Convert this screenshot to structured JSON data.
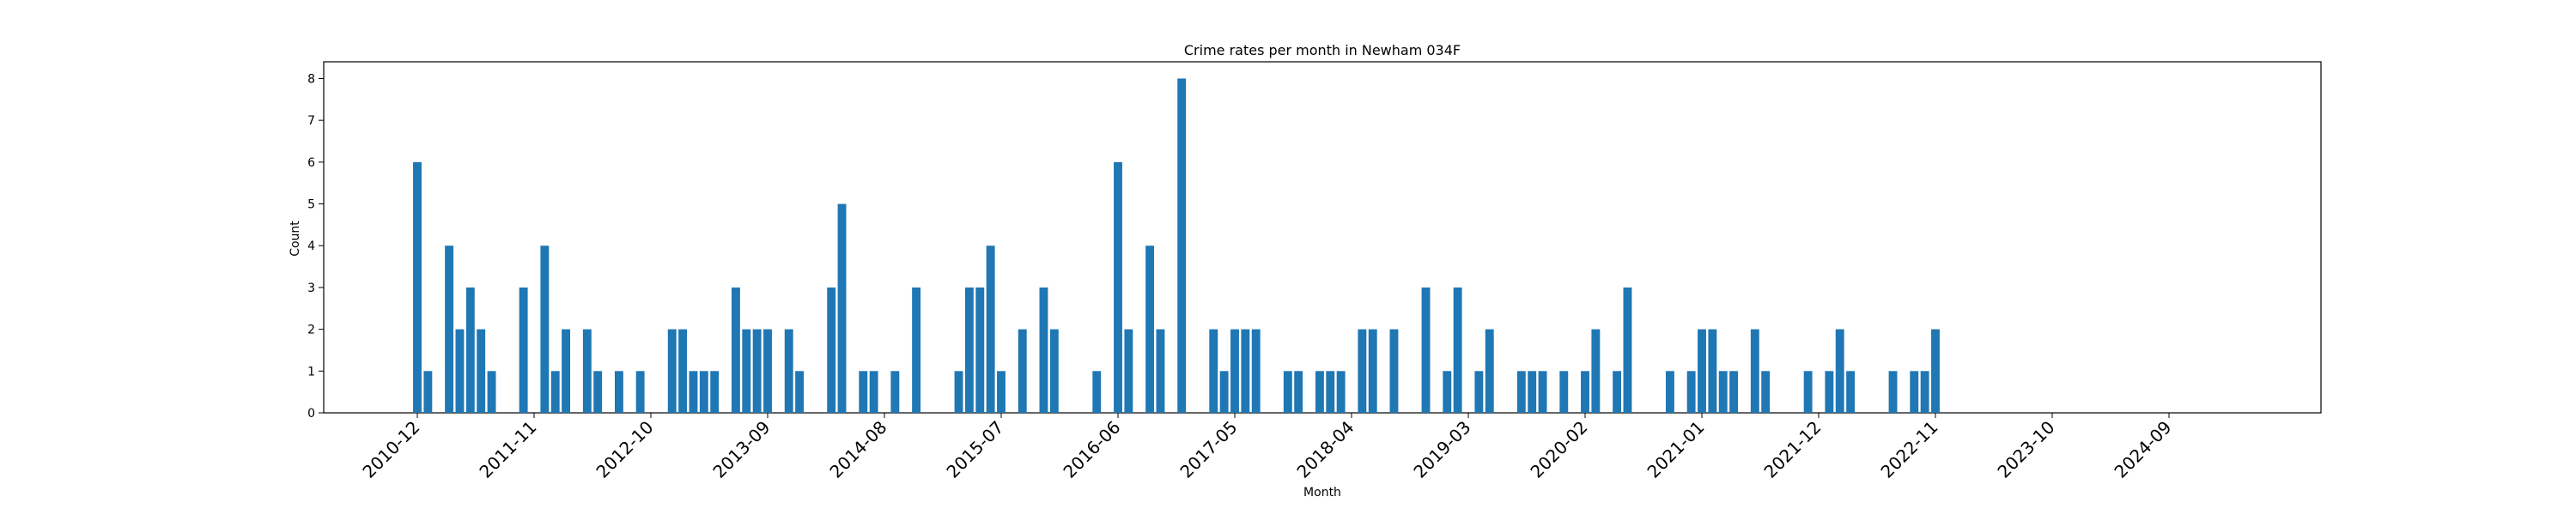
{
  "chart_data": {
    "type": "bar",
    "title": "Crime rates per month in Newham 034F",
    "xlabel": "Month",
    "ylabel": "Count",
    "ylim": [
      0,
      8.4
    ],
    "yticks": [
      0,
      1,
      2,
      3,
      4,
      5,
      6,
      7,
      8
    ],
    "xtick_labels": [
      "2010-12",
      "2011-11",
      "2012-10",
      "2013-09",
      "2014-08",
      "2015-07",
      "2016-06",
      "2017-05",
      "2018-04",
      "2019-03",
      "2020-02",
      "2021-01",
      "2021-12",
      "2022-11",
      "2023-10",
      "2024-09"
    ],
    "bar_color": "#1f77b4",
    "grid": false,
    "categories": [
      "2010-12",
      "2011-01",
      "2011-03",
      "2011-04",
      "2011-05",
      "2011-06",
      "2011-07",
      "2011-10",
      "2011-12",
      "2012-01",
      "2012-02",
      "2012-04",
      "2012-05",
      "2012-07",
      "2012-09",
      "2012-12",
      "2013-01",
      "2013-02",
      "2013-03",
      "2013-04",
      "2013-06",
      "2013-07",
      "2013-08",
      "2013-09",
      "2013-11",
      "2013-12",
      "2014-03",
      "2014-04",
      "2014-06",
      "2014-07",
      "2014-09",
      "2014-11",
      "2015-03",
      "2015-04",
      "2015-05",
      "2015-06",
      "2015-07",
      "2015-09",
      "2015-11",
      "2015-12",
      "2016-04",
      "2016-06",
      "2016-07",
      "2016-09",
      "2016-10",
      "2016-12",
      "2017-03",
      "2017-04",
      "2017-05",
      "2017-06",
      "2017-07",
      "2017-10",
      "2017-11",
      "2018-01",
      "2018-02",
      "2018-03",
      "2018-05",
      "2018-06",
      "2018-08",
      "2018-11",
      "2019-01",
      "2019-02",
      "2019-04",
      "2019-05",
      "2019-08",
      "2019-09",
      "2019-10",
      "2019-12",
      "2020-02",
      "2020-03",
      "2020-05",
      "2020-06",
      "2020-10",
      "2020-12",
      "2021-01",
      "2021-02",
      "2021-03",
      "2021-04",
      "2021-06",
      "2021-07",
      "2021-11",
      "2022-01",
      "2022-02",
      "2022-03",
      "2022-07",
      "2022-09",
      "2022-10",
      "2022-11"
    ],
    "values": [
      6,
      1,
      4,
      2,
      3,
      2,
      1,
      3,
      4,
      1,
      2,
      2,
      1,
      1,
      1,
      2,
      2,
      1,
      1,
      1,
      3,
      2,
      2,
      2,
      2,
      1,
      3,
      5,
      1,
      1,
      1,
      3,
      1,
      3,
      3,
      4,
      1,
      2,
      3,
      2,
      1,
      6,
      2,
      4,
      2,
      8,
      2,
      1,
      2,
      2,
      2,
      1,
      1,
      1,
      1,
      1,
      2,
      2,
      2,
      3,
      1,
      3,
      1,
      2,
      1,
      1,
      1,
      1,
      1,
      2,
      1,
      3,
      1,
      1,
      2,
      2,
      1,
      1,
      2,
      1,
      1,
      1,
      2,
      1,
      1,
      1,
      1,
      2
    ]
  }
}
